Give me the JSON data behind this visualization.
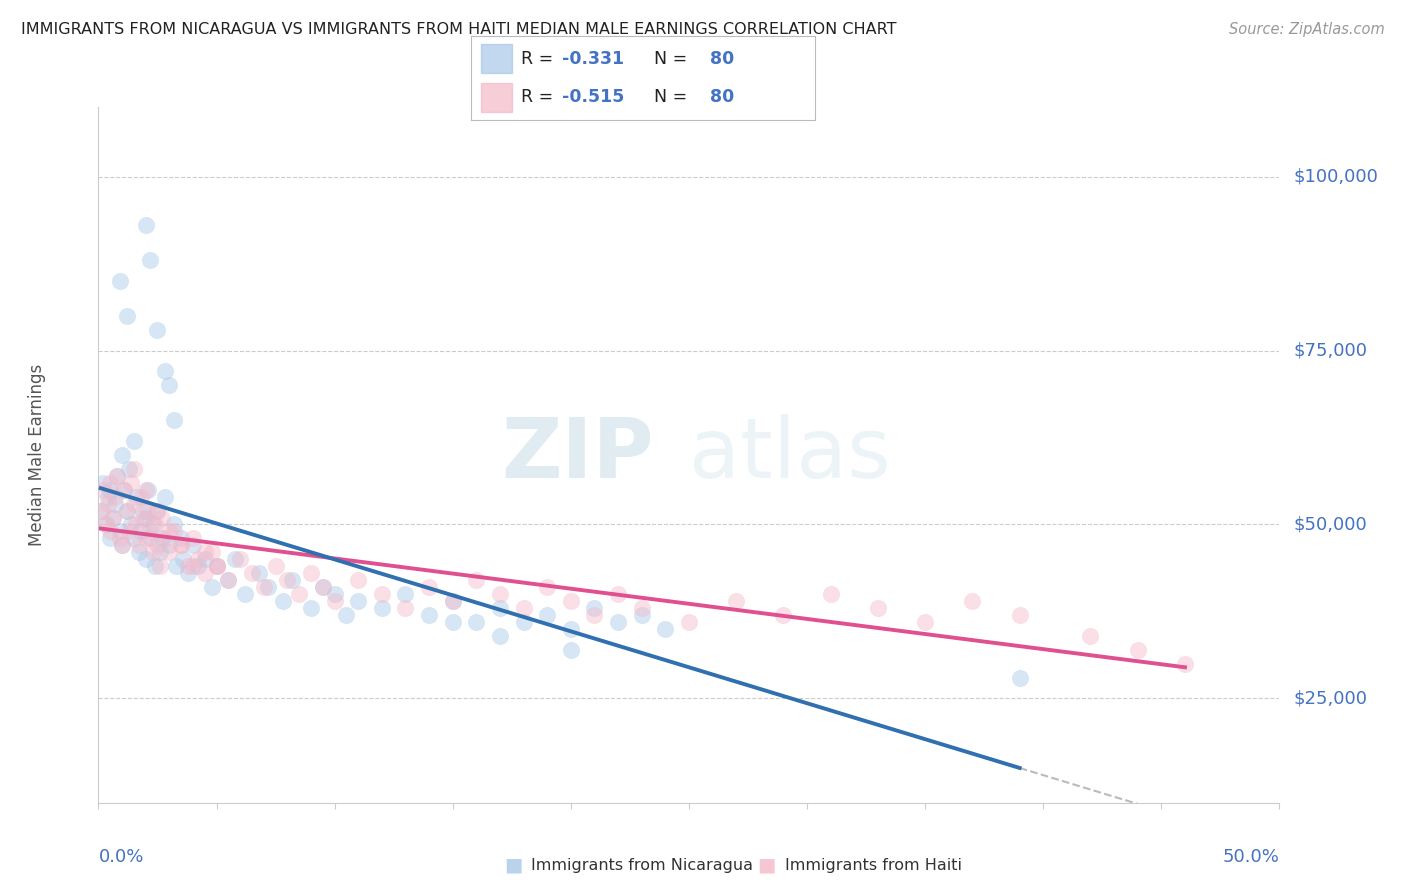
{
  "title": "IMMIGRANTS FROM NICARAGUA VS IMMIGRANTS FROM HAITI MEDIAN MALE EARNINGS CORRELATION CHART",
  "source": "Source: ZipAtlas.com",
  "ylabel": "Median Male Earnings",
  "legend_nicaragua": "Immigrants from Nicaragua",
  "legend_haiti": "Immigrants from Haiti",
  "r_nicaragua": "-0.331",
  "n_nicaragua": "80",
  "r_haiti": "-0.515",
  "n_haiti": "80",
  "color_nicaragua": "#a8c8e8",
  "color_haiti": "#f4b8c8",
  "color_nicaragua_line": "#3070b0",
  "color_haiti_line": "#e05090",
  "color_blue": "#4472c4",
  "xlim": [
    0.0,
    0.5
  ],
  "ylim": [
    10000,
    110000
  ],
  "yticks": [
    25000,
    50000,
    75000,
    100000
  ],
  "ytick_labels": [
    "$25,000",
    "$50,000",
    "$75,000",
    "$100,000"
  ],
  "nicaragua_x": [
    0.001,
    0.002,
    0.003,
    0.004,
    0.005,
    0.005,
    0.006,
    0.007,
    0.008,
    0.009,
    0.01,
    0.01,
    0.011,
    0.012,
    0.013,
    0.014,
    0.015,
    0.015,
    0.016,
    0.017,
    0.018,
    0.019,
    0.02,
    0.02,
    0.021,
    0.022,
    0.023,
    0.024,
    0.025,
    0.026,
    0.027,
    0.028,
    0.03,
    0.032,
    0.033,
    0.035,
    0.036,
    0.038,
    0.04,
    0.042,
    0.045,
    0.048,
    0.05,
    0.055,
    0.058,
    0.062,
    0.068,
    0.072,
    0.078,
    0.082,
    0.09,
    0.095,
    0.1,
    0.105,
    0.11,
    0.12,
    0.13,
    0.14,
    0.15,
    0.16,
    0.17,
    0.18,
    0.19,
    0.2,
    0.21,
    0.22,
    0.23,
    0.24,
    0.02,
    0.022,
    0.025,
    0.028,
    0.03,
    0.032,
    0.009,
    0.012,
    0.15,
    0.17,
    0.2,
    0.39
  ],
  "nicaragua_y": [
    52000,
    56000,
    50000,
    54000,
    55000,
    48000,
    51000,
    53000,
    57000,
    49000,
    47000,
    60000,
    55000,
    52000,
    58000,
    50000,
    48000,
    62000,
    54000,
    46000,
    49000,
    52000,
    51000,
    45000,
    55000,
    48000,
    50000,
    44000,
    52000,
    46000,
    48000,
    54000,
    47000,
    50000,
    44000,
    48000,
    45000,
    43000,
    47000,
    44000,
    45000,
    41000,
    44000,
    42000,
    45000,
    40000,
    43000,
    41000,
    39000,
    42000,
    38000,
    41000,
    40000,
    37000,
    39000,
    38000,
    40000,
    37000,
    39000,
    36000,
    38000,
    36000,
    37000,
    35000,
    38000,
    36000,
    37000,
    35000,
    93000,
    88000,
    78000,
    72000,
    70000,
    65000,
    85000,
    80000,
    36000,
    34000,
    32000,
    28000
  ],
  "haiti_x": [
    0.001,
    0.002,
    0.003,
    0.004,
    0.005,
    0.005,
    0.006,
    0.007,
    0.008,
    0.009,
    0.01,
    0.011,
    0.012,
    0.013,
    0.014,
    0.015,
    0.016,
    0.017,
    0.018,
    0.019,
    0.02,
    0.021,
    0.022,
    0.023,
    0.024,
    0.025,
    0.026,
    0.027,
    0.028,
    0.03,
    0.032,
    0.035,
    0.038,
    0.04,
    0.042,
    0.045,
    0.048,
    0.05,
    0.055,
    0.06,
    0.065,
    0.07,
    0.075,
    0.08,
    0.085,
    0.09,
    0.095,
    0.1,
    0.11,
    0.12,
    0.13,
    0.14,
    0.15,
    0.16,
    0.17,
    0.18,
    0.19,
    0.2,
    0.21,
    0.22,
    0.23,
    0.25,
    0.27,
    0.29,
    0.31,
    0.33,
    0.35,
    0.37,
    0.39,
    0.42,
    0.44,
    0.46,
    0.015,
    0.02,
    0.025,
    0.03,
    0.035,
    0.04,
    0.045,
    0.05
  ],
  "haiti_y": [
    52000,
    55000,
    50000,
    53000,
    56000,
    49000,
    51000,
    54000,
    57000,
    48000,
    47000,
    55000,
    52000,
    49000,
    56000,
    53000,
    50000,
    47000,
    54000,
    51000,
    48000,
    52000,
    49000,
    46000,
    50000,
    47000,
    44000,
    51000,
    48000,
    46000,
    49000,
    47000,
    44000,
    48000,
    45000,
    43000,
    46000,
    44000,
    42000,
    45000,
    43000,
    41000,
    44000,
    42000,
    40000,
    43000,
    41000,
    39000,
    42000,
    40000,
    38000,
    41000,
    39000,
    42000,
    40000,
    38000,
    41000,
    39000,
    37000,
    40000,
    38000,
    36000,
    39000,
    37000,
    40000,
    38000,
    36000,
    39000,
    37000,
    34000,
    32000,
    30000,
    58000,
    55000,
    52000,
    49000,
    47000,
    44000,
    46000,
    44000
  ]
}
